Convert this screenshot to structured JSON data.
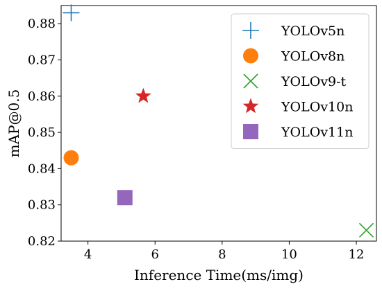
{
  "chart_data": {
    "type": "scatter",
    "title": "",
    "xlabel": "Inference Time(ms/img)",
    "ylabel": "mAP@0.5",
    "xlim": [
      3.2,
      12.6
    ],
    "ylim": [
      0.82,
      0.885
    ],
    "xticks": [
      {
        "value": 4,
        "label": "4"
      },
      {
        "value": 6,
        "label": "6"
      },
      {
        "value": 8,
        "label": "8"
      },
      {
        "value": 10,
        "label": "10"
      },
      {
        "value": 12,
        "label": "12"
      }
    ],
    "yticks": [
      {
        "value": 0.82,
        "label": "0.82"
      },
      {
        "value": 0.83,
        "label": "0.83"
      },
      {
        "value": 0.84,
        "label": "0.84"
      },
      {
        "value": 0.85,
        "label": "0.85"
      },
      {
        "value": 0.86,
        "label": "0.86"
      },
      {
        "value": 0.87,
        "label": "0.87"
      },
      {
        "value": 0.88,
        "label": "0.88"
      }
    ],
    "grid": false,
    "legend_position": "top-right",
    "series": [
      {
        "name": "YOLOv5n",
        "x": 3.5,
        "y": 0.883,
        "marker": "plus",
        "color": "#1f77b4"
      },
      {
        "name": "YOLOv8n",
        "x": 3.5,
        "y": 0.843,
        "marker": "circle",
        "color": "#ff7f0e"
      },
      {
        "name": "YOLOv9-t",
        "x": 12.3,
        "y": 0.823,
        "marker": "x",
        "color": "#2ca02c"
      },
      {
        "name": "YOLOv10n",
        "x": 5.65,
        "y": 0.86,
        "marker": "star",
        "color": "#d62728"
      },
      {
        "name": "YOLOv11n",
        "x": 5.1,
        "y": 0.832,
        "marker": "square",
        "color": "#9467bd"
      }
    ]
  }
}
